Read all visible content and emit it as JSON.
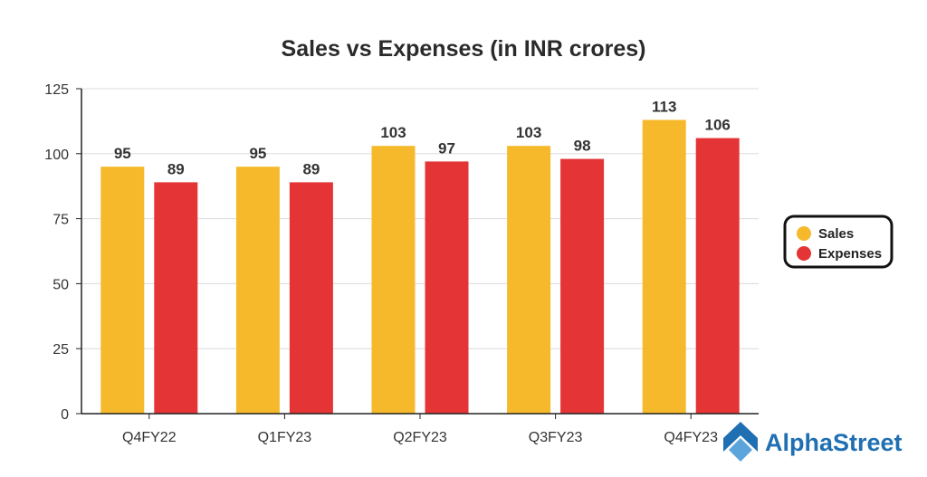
{
  "colors": {
    "sales": "#f6b92b",
    "expenses": "#e43436",
    "grid": "#dcdcdc",
    "axis": "#222222",
    "brand": "#1f6fb2"
  },
  "brand": {
    "name": "AlphaStreet",
    "icon": "alphastreet-logo-icon"
  },
  "chart_data": {
    "type": "bar",
    "title": "Sales vs Expenses (in INR crores)",
    "xlabel": "",
    "ylabel": "",
    "categories": [
      "Q4FY22",
      "Q1FY23",
      "Q2FY23",
      "Q3FY23",
      "Q4FY23"
    ],
    "series": [
      {
        "name": "Sales",
        "values": [
          95,
          95,
          103,
          103,
          113
        ]
      },
      {
        "name": "Expenses",
        "values": [
          89,
          89,
          97,
          98,
          106
        ]
      }
    ],
    "ylim": [
      0,
      125
    ],
    "yticks": [
      0,
      25,
      50,
      75,
      100,
      125
    ],
    "grid": true,
    "legend": "right"
  }
}
